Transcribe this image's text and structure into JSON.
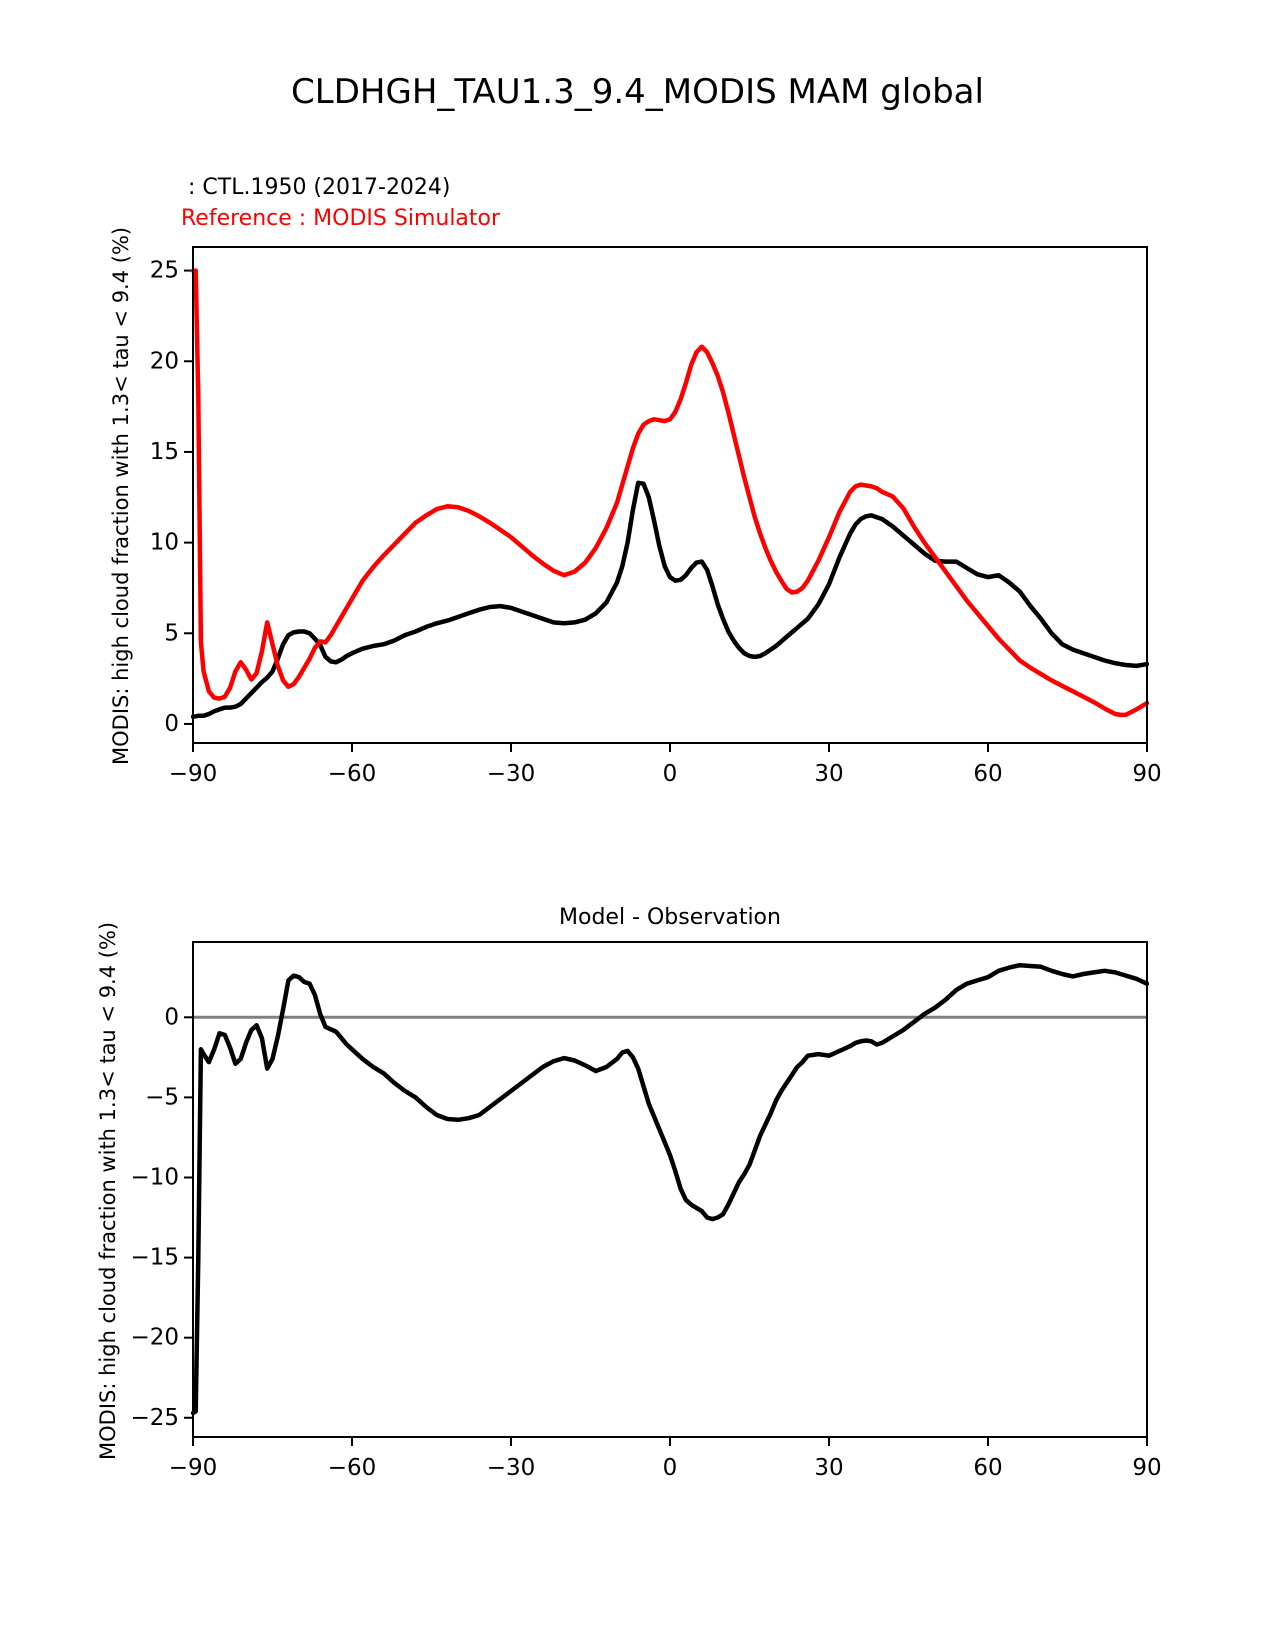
{
  "figure": {
    "title": "CLDHGH_TAU1.3_9.4_MODIS MAM global",
    "legend": {
      "model_label": " : CTL.1950 (2017-2024)",
      "reference_label": "Reference : MODIS Simulator",
      "model_color": "#000000",
      "reference_color": "#ff0000"
    }
  },
  "chart_data": [
    {
      "type": "line",
      "name": "zonal-mean-cloud-fraction",
      "title": "",
      "xlabel": "",
      "ylabel": "MODIS: high cloud fraction with 1.3< tau < 9.4 (%)",
      "legend_position": "upper-left-above-axes",
      "grid": false,
      "xlim": [
        -90,
        90
      ],
      "ylim": [
        -1.05,
        26.3
      ],
      "xticks": {
        "values": [
          -90,
          -60,
          -30,
          0,
          30,
          60,
          90
        ],
        "labels": [
          "−90",
          "−60",
          "−30",
          "0",
          "30",
          "60",
          "90"
        ]
      },
      "yticks": {
        "values": [
          0,
          5,
          10,
          15,
          20,
          25
        ],
        "labels": [
          "0",
          "5",
          "10",
          "15",
          "20",
          "25"
        ]
      },
      "zero_line": false,
      "x": [
        -90,
        -89.5,
        -89,
        -88.5,
        -88,
        -87,
        -86,
        -85,
        -84,
        -83,
        -82,
        -81,
        -80,
        -79,
        -78,
        -77,
        -76,
        -75,
        -74,
        -73,
        -72,
        -71,
        -70,
        -69,
        -68,
        -67,
        -66,
        -65,
        -64,
        -63,
        -62,
        -61,
        -60,
        -58,
        -56,
        -54,
        -52,
        -50,
        -48,
        -46,
        -44,
        -42,
        -40,
        -38,
        -36,
        -34,
        -32,
        -30,
        -28,
        -26,
        -24,
        -22,
        -20,
        -18,
        -16,
        -14,
        -12,
        -10,
        -9,
        -8,
        -7,
        -6,
        -5,
        -4,
        -3,
        -2,
        -1,
        0,
        1,
        2,
        3,
        4,
        5,
        6,
        7,
        8,
        9,
        10,
        11,
        12,
        13,
        14,
        15,
        16,
        17,
        18,
        19,
        20,
        21,
        22,
        23,
        24,
        25,
        26,
        28,
        30,
        32,
        34,
        35,
        36,
        37,
        38,
        39,
        40,
        42,
        44,
        46,
        48,
        50,
        52,
        54,
        56,
        58,
        60,
        62,
        64,
        66,
        68,
        70,
        72,
        74,
        76,
        78,
        80,
        82,
        84,
        85,
        86,
        88,
        90
      ],
      "series": [
        {
          "name": "CTL.1950 (2017-2024)",
          "color": "#000000",
          "line_width": 4.5,
          "values": [
            0.4,
            0.42,
            0.45,
            0.45,
            0.45,
            0.55,
            0.7,
            0.8,
            0.9,
            0.9,
            0.95,
            1.1,
            1.4,
            1.7,
            2.0,
            2.3,
            2.55,
            2.9,
            3.6,
            4.4,
            4.9,
            5.05,
            5.1,
            5.1,
            5.0,
            4.7,
            4.35,
            3.7,
            3.45,
            3.4,
            3.55,
            3.75,
            3.9,
            4.15,
            4.3,
            4.4,
            4.6,
            4.9,
            5.1,
            5.35,
            5.55,
            5.7,
            5.9,
            6.1,
            6.3,
            6.45,
            6.5,
            6.4,
            6.2,
            6.0,
            5.8,
            5.6,
            5.55,
            5.6,
            5.75,
            6.1,
            6.7,
            7.8,
            8.7,
            10.0,
            11.8,
            13.3,
            13.25,
            12.5,
            11.2,
            9.8,
            8.7,
            8.1,
            7.9,
            7.95,
            8.2,
            8.6,
            8.9,
            8.95,
            8.5,
            7.6,
            6.6,
            5.8,
            5.1,
            4.6,
            4.2,
            3.9,
            3.75,
            3.7,
            3.75,
            3.9,
            4.1,
            4.3,
            4.55,
            4.8,
            5.05,
            5.3,
            5.55,
            5.8,
            6.6,
            7.7,
            9.2,
            10.5,
            11.0,
            11.3,
            11.45,
            11.5,
            11.4,
            11.3,
            10.9,
            10.4,
            9.9,
            9.4,
            9.0,
            8.95,
            8.95,
            8.6,
            8.25,
            8.1,
            8.2,
            7.8,
            7.3,
            6.5,
            5.8,
            5.0,
            4.4,
            4.1,
            3.9,
            3.7,
            3.5,
            3.35,
            3.3,
            3.25,
            3.2,
            3.3
          ]
        },
        {
          "name": "MODIS Simulator",
          "color": "#ff0000",
          "line_width": 4.5,
          "values": [
            25.0,
            25.0,
            18.0,
            4.5,
            2.9,
            1.8,
            1.45,
            1.4,
            1.5,
            2.0,
            2.9,
            3.4,
            3.0,
            2.45,
            2.8,
            4.0,
            5.6,
            4.4,
            3.2,
            2.4,
            2.05,
            2.2,
            2.6,
            3.1,
            3.6,
            4.2,
            4.55,
            4.5,
            4.9,
            5.4,
            5.9,
            6.4,
            6.9,
            7.9,
            8.65,
            9.3,
            9.9,
            10.5,
            11.1,
            11.5,
            11.85,
            12.0,
            11.95,
            11.75,
            11.45,
            11.1,
            10.7,
            10.3,
            9.8,
            9.3,
            8.85,
            8.45,
            8.2,
            8.4,
            8.9,
            9.7,
            10.8,
            12.2,
            13.2,
            14.2,
            15.2,
            16.0,
            16.5,
            16.7,
            16.8,
            16.75,
            16.7,
            16.8,
            17.2,
            17.9,
            18.8,
            19.8,
            20.5,
            20.8,
            20.5,
            19.9,
            19.2,
            18.3,
            17.2,
            16.0,
            14.8,
            13.6,
            12.5,
            11.4,
            10.5,
            9.7,
            9.0,
            8.4,
            7.9,
            7.45,
            7.25,
            7.3,
            7.5,
            7.9,
            9.0,
            10.3,
            11.7,
            12.8,
            13.1,
            13.2,
            13.15,
            13.1,
            13.0,
            12.8,
            12.55,
            11.9,
            10.9,
            10.0,
            9.2,
            8.4,
            7.6,
            6.8,
            6.1,
            5.4,
            4.7,
            4.1,
            3.5,
            3.1,
            2.75,
            2.4,
            2.1,
            1.8,
            1.5,
            1.2,
            0.85,
            0.55,
            0.5,
            0.5,
            0.8,
            1.15
          ]
        }
      ]
    },
    {
      "type": "line",
      "name": "model-minus-observation",
      "title": "Model - Observation",
      "xlabel": "",
      "ylabel": "MODIS: high cloud fraction with 1.3< tau < 9.4 (%)",
      "grid": false,
      "xlim": [
        -90,
        90
      ],
      "ylim": [
        -26.2,
        4.7
      ],
      "xticks": {
        "values": [
          -90,
          -60,
          -30,
          0,
          30,
          60,
          90
        ],
        "labels": [
          "−90",
          "−60",
          "−30",
          "0",
          "30",
          "60",
          "90"
        ]
      },
      "yticks": {
        "values": [
          0,
          -5,
          -10,
          -15,
          -20,
          -25
        ],
        "labels": [
          "0",
          "−5",
          "−10",
          "−15",
          "−20",
          "−25"
        ]
      },
      "zero_line": true,
      "zero_line_color": "#808080",
      "x": [
        -90,
        -89.5,
        -89,
        -88.5,
        -88,
        -87,
        -86,
        -85,
        -84,
        -83,
        -82,
        -81,
        -80,
        -79,
        -78,
        -77,
        -76,
        -75,
        -74,
        -73,
        -72,
        -71,
        -70,
        -69,
        -68,
        -67,
        -66,
        -65,
        -64,
        -63,
        -62,
        -61,
        -60,
        -58,
        -56,
        -54,
        -52,
        -50,
        -48,
        -46,
        -44,
        -42,
        -40,
        -38,
        -36,
        -34,
        -32,
        -30,
        -28,
        -26,
        -24,
        -22,
        -20,
        -18,
        -16,
        -14,
        -12,
        -10,
        -9,
        -8,
        -7,
        -6,
        -5,
        -4,
        -3,
        -2,
        -1,
        0,
        1,
        2,
        3,
        4,
        5,
        6,
        7,
        8,
        9,
        10,
        11,
        12,
        13,
        14,
        15,
        16,
        17,
        18,
        19,
        20,
        21,
        22,
        23,
        24,
        25,
        26,
        28,
        30,
        32,
        34,
        35,
        36,
        37,
        38,
        39,
        40,
        42,
        44,
        46,
        48,
        50,
        52,
        54,
        56,
        58,
        60,
        62,
        64,
        66,
        68,
        70,
        72,
        74,
        76,
        78,
        80,
        82,
        84,
        85,
        86,
        88,
        90
      ],
      "series": [
        {
          "name": "Model - Observation",
          "color": "#000000",
          "line_width": 4.5,
          "values": [
            -24.7,
            -24.6,
            -15.0,
            -2.0,
            -2.3,
            -2.8,
            -2.0,
            -1.0,
            -1.1,
            -1.9,
            -2.9,
            -2.6,
            -1.6,
            -0.8,
            -0.5,
            -1.3,
            -3.2,
            -2.6,
            -1.2,
            0.5,
            2.3,
            2.6,
            2.5,
            2.2,
            2.1,
            1.4,
            0.2,
            -0.6,
            -0.75,
            -0.9,
            -1.3,
            -1.7,
            -2.0,
            -2.6,
            -3.1,
            -3.5,
            -4.1,
            -4.6,
            -5.0,
            -5.6,
            -6.1,
            -6.35,
            -6.4,
            -6.3,
            -6.1,
            -5.6,
            -5.1,
            -4.6,
            -4.1,
            -3.6,
            -3.1,
            -2.75,
            -2.55,
            -2.7,
            -3.0,
            -3.35,
            -3.1,
            -2.6,
            -2.2,
            -2.1,
            -2.5,
            -3.2,
            -4.3,
            -5.4,
            -6.2,
            -7.0,
            -7.8,
            -8.6,
            -9.6,
            -10.7,
            -11.4,
            -11.7,
            -11.9,
            -12.1,
            -12.5,
            -12.6,
            -12.5,
            -12.3,
            -11.7,
            -11.0,
            -10.3,
            -9.8,
            -9.2,
            -8.3,
            -7.4,
            -6.7,
            -6.0,
            -5.2,
            -4.6,
            -4.1,
            -3.6,
            -3.1,
            -2.8,
            -2.4,
            -2.3,
            -2.4,
            -2.1,
            -1.8,
            -1.6,
            -1.5,
            -1.45,
            -1.5,
            -1.7,
            -1.6,
            -1.2,
            -0.8,
            -0.3,
            0.2,
            0.6,
            1.1,
            1.7,
            2.1,
            2.3,
            2.5,
            2.9,
            3.1,
            3.25,
            3.2,
            3.15,
            2.9,
            2.7,
            2.55,
            2.7,
            2.8,
            2.9,
            2.8,
            2.7,
            2.6,
            2.4,
            2.1
          ]
        }
      ]
    }
  ]
}
